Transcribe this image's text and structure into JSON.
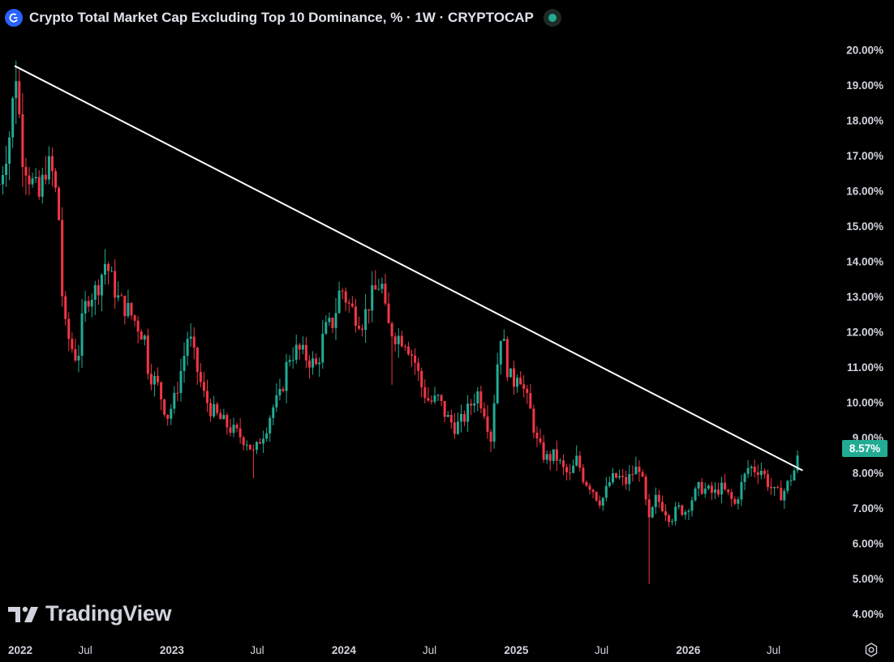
{
  "header": {
    "title": "Crypto Total Market Cap Excluding Top 10 Dominance, % · 1W · CRYPTOCAP",
    "symbol_icon": "crypto-cap-icon",
    "status": "market-open"
  },
  "watermark": {
    "text": "TradingView",
    "icon": "tradingview-logo-icon"
  },
  "colors": {
    "up": "#22ab94",
    "down": "#f23645",
    "trendline": "#ffffff",
    "background": "#000000"
  },
  "chart_data": {
    "type": "candlestick",
    "title": "Crypto Total Market Cap Excluding Top 10 Dominance, % · 1W · CRYPTOCAP",
    "ylabel": "%",
    "ylim": [
      3.6,
      20.5
    ],
    "xlim": [
      "2022-01-01",
      "2026-10-15"
    ],
    "y_ticks": [
      "20.00%",
      "19.00%",
      "18.00%",
      "17.00%",
      "16.00%",
      "15.00%",
      "14.00%",
      "13.00%",
      "12.00%",
      "11.00%",
      "10.00%",
      "9.00%",
      "8.00%",
      "7.00%",
      "6.00%",
      "5.00%",
      "4.00%"
    ],
    "x_ticks": [
      {
        "label": "2022",
        "date": "2022-01-01",
        "year": true
      },
      {
        "label": "Jul",
        "date": "2022-07-01",
        "year": false
      },
      {
        "label": "2023",
        "date": "2023-01-01",
        "year": true
      },
      {
        "label": "Jul",
        "date": "2023-07-01",
        "year": false
      },
      {
        "label": "2024",
        "date": "2024-01-01",
        "year": true
      },
      {
        "label": "Jul",
        "date": "2024-07-01",
        "year": false
      },
      {
        "label": "2025",
        "date": "2025-01-01",
        "year": true
      },
      {
        "label": "Jul",
        "date": "2025-07-01",
        "year": false
      },
      {
        "label": "2026",
        "date": "2026-01-01",
        "year": true
      },
      {
        "label": "Jul",
        "date": "2026-07-01",
        "year": false
      }
    ],
    "last_price": "8.57%",
    "close_path": [
      [
        "2021-12-31",
        16.2
      ],
      [
        "2022-01-21",
        17.6
      ],
      [
        "2022-02-05",
        19.5
      ],
      [
        "2022-02-15",
        17.2
      ],
      [
        "2022-03-05",
        16.4
      ],
      [
        "2022-03-25",
        15.8
      ],
      [
        "2022-04-10",
        16.8
      ],
      [
        "2022-04-25",
        16.4
      ],
      [
        "2022-05-08",
        15.0
      ],
      [
        "2022-05-15",
        12.3
      ],
      [
        "2022-06-01",
        11.6
      ],
      [
        "2022-06-15",
        11.2
      ],
      [
        "2022-06-22",
        12.1
      ],
      [
        "2022-07-05",
        13.0
      ],
      [
        "2022-07-25",
        13.2
      ],
      [
        "2022-08-13",
        14.0
      ],
      [
        "2022-08-25",
        13.5
      ],
      [
        "2022-09-10",
        12.9
      ],
      [
        "2022-10-01",
        12.6
      ],
      [
        "2022-10-20",
        12.2
      ],
      [
        "2022-11-05",
        11.8
      ],
      [
        "2022-11-12",
        10.9
      ],
      [
        "2022-12-01",
        10.5
      ],
      [
        "2022-12-22",
        9.6
      ],
      [
        "2023-01-07",
        10.1
      ],
      [
        "2023-01-25",
        11.2
      ],
      [
        "2023-02-05",
        12.0
      ],
      [
        "2023-02-20",
        11.1
      ],
      [
        "2023-03-10",
        10.2
      ],
      [
        "2023-03-25",
        9.8
      ],
      [
        "2023-04-15",
        9.5
      ],
      [
        "2023-05-10",
        9.2
      ],
      [
        "2023-06-10",
        8.9
      ],
      [
        "2023-06-25",
        8.5
      ],
      [
        "2023-07-05",
        8.9
      ],
      [
        "2023-07-20",
        9.3
      ],
      [
        "2023-08-01",
        9.8
      ],
      [
        "2023-08-20",
        10.2
      ],
      [
        "2023-09-05",
        11.3
      ],
      [
        "2023-09-25",
        11.5
      ],
      [
        "2023-10-20",
        11.2
      ],
      [
        "2023-11-05",
        11.0
      ],
      [
        "2023-11-20",
        12.0
      ],
      [
        "2023-12-10",
        12.3
      ],
      [
        "2023-12-25",
        13.3
      ],
      [
        "2024-01-10",
        12.8
      ],
      [
        "2024-01-25",
        12.5
      ],
      [
        "2024-02-10",
        12.3
      ],
      [
        "2024-02-25",
        12.9
      ],
      [
        "2024-03-10",
        13.2
      ],
      [
        "2024-03-20",
        13.5
      ],
      [
        "2024-04-01",
        12.2
      ],
      [
        "2024-04-20",
        11.9
      ],
      [
        "2024-05-10",
        11.8
      ],
      [
        "2024-05-30",
        11.2
      ],
      [
        "2024-06-15",
        10.4
      ],
      [
        "2024-07-01",
        10.0
      ],
      [
        "2024-07-20",
        10.1
      ],
      [
        "2024-08-05",
        9.6
      ],
      [
        "2024-08-25",
        9.3
      ],
      [
        "2024-09-10",
        9.5
      ],
      [
        "2024-09-25",
        9.9
      ],
      [
        "2024-10-10",
        10.3
      ],
      [
        "2024-10-25",
        9.8
      ],
      [
        "2024-11-08",
        9.0
      ],
      [
        "2024-11-20",
        10.9
      ],
      [
        "2024-12-01",
        12.2
      ],
      [
        "2024-12-10",
        11.1
      ],
      [
        "2024-12-25",
        10.5
      ],
      [
        "2025-01-05",
        11.0
      ],
      [
        "2025-01-18",
        10.3
      ],
      [
        "2025-02-01",
        9.7
      ],
      [
        "2025-02-15",
        8.8
      ],
      [
        "2025-03-05",
        8.4
      ],
      [
        "2025-03-25",
        8.5
      ],
      [
        "2025-04-10",
        8.1
      ],
      [
        "2025-04-25",
        7.9
      ],
      [
        "2025-05-10",
        8.4
      ],
      [
        "2025-05-25",
        7.8
      ],
      [
        "2025-06-10",
        7.6
      ],
      [
        "2025-06-25",
        7.2
      ],
      [
        "2025-07-05",
        7.3
      ],
      [
        "2025-07-20",
        7.8
      ],
      [
        "2025-08-05",
        7.9
      ],
      [
        "2025-08-20",
        7.7
      ],
      [
        "2025-09-05",
        8.0
      ],
      [
        "2025-09-20",
        8.2
      ],
      [
        "2025-10-01",
        7.3
      ],
      [
        "2025-10-10",
        6.6
      ],
      [
        "2025-10-25",
        7.3
      ],
      [
        "2025-11-10",
        7.0
      ],
      [
        "2025-11-25",
        6.7
      ],
      [
        "2025-12-10",
        7.0
      ],
      [
        "2025-12-25",
        6.9
      ],
      [
        "2026-01-10",
        7.3
      ],
      [
        "2026-01-25",
        7.6
      ],
      [
        "2026-02-10",
        7.5
      ],
      [
        "2026-02-25",
        7.4
      ],
      [
        "2026-03-10",
        7.6
      ],
      [
        "2026-03-25",
        7.4
      ],
      [
        "2026-04-10",
        7.1
      ],
      [
        "2026-04-25",
        7.7
      ],
      [
        "2026-05-10",
        8.2
      ],
      [
        "2026-05-20",
        8.1
      ],
      [
        "2026-06-05",
        8.1
      ],
      [
        "2026-06-20",
        7.7
      ],
      [
        "2026-07-05",
        7.4
      ],
      [
        "2026-07-20",
        7.4
      ],
      [
        "2026-08-01",
        7.7
      ],
      [
        "2026-08-15",
        8.1
      ],
      [
        "2026-08-25",
        8.57
      ]
    ],
    "spikes": [
      {
        "date": "2022-02-05",
        "high": 19.7,
        "low": 17.9
      },
      {
        "date": "2025-10-10",
        "high": 7.4,
        "low": 4.85
      },
      {
        "date": "2024-04-10",
        "high": 11.6,
        "low": 10.5
      },
      {
        "date": "2023-06-25",
        "high": 8.6,
        "low": 7.85
      }
    ],
    "trendline": {
      "start": {
        "date": "2022-02-01",
        "value": 19.55
      },
      "end": {
        "date": "2026-09-01",
        "value": 8.07
      }
    }
  }
}
